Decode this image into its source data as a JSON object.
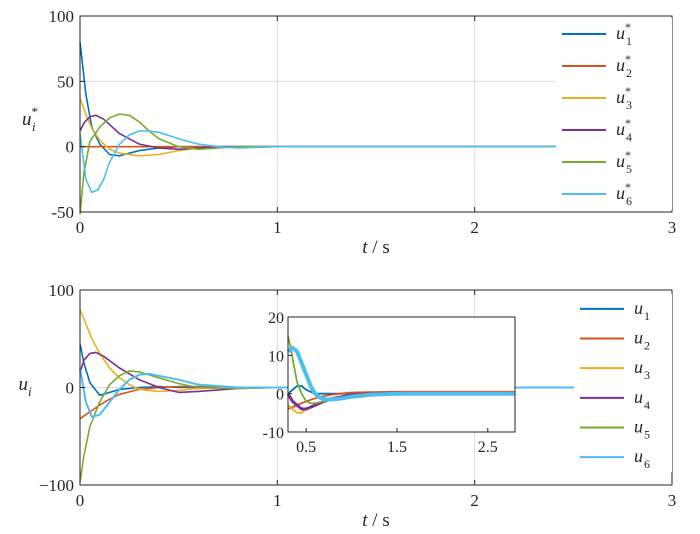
{
  "colors": {
    "u1": "#0072BD",
    "u2": "#D95319",
    "u3": "#EDB120",
    "u4": "#7E2F8E",
    "u5": "#77AC30",
    "u6": "#4DBEEE",
    "axis": "#262626",
    "grid": "#dddddd"
  },
  "chart_data": [
    {
      "type": "line",
      "xlabel": {
        "var": "t",
        "unit": " / s"
      },
      "ylabel": {
        "base": "u",
        "sub": "i",
        "sup": "*"
      },
      "xlim": [
        0,
        3
      ],
      "ylim": [
        -50,
        100
      ],
      "xticks": [
        "0",
        "1",
        "2",
        "3"
      ],
      "yticks": [
        "100",
        "50",
        "0",
        "-50"
      ],
      "grid": true,
      "legend_position": "top-right",
      "series": [
        {
          "name": "u1*",
          "label_base": "u",
          "label_sub": "1",
          "label_sup": "*",
          "color_key": "u1",
          "x": [
            0,
            0.03,
            0.06,
            0.1,
            0.15,
            0.2,
            0.25,
            0.3,
            0.4,
            0.5,
            0.6,
            0.8,
            3
          ],
          "y": [
            80,
            40,
            15,
            2,
            -6,
            -7,
            -5,
            -3,
            -1,
            0,
            0,
            0,
            0
          ]
        },
        {
          "name": "u2*",
          "label_base": "u",
          "label_sub": "2",
          "label_sup": "*",
          "color_key": "u2",
          "x": [
            0,
            0.1,
            0.3,
            0.6,
            1.0,
            3
          ],
          "y": [
            0,
            0,
            0,
            0,
            0,
            0
          ]
        },
        {
          "name": "u3*",
          "label_base": "u",
          "label_sub": "3",
          "label_sup": "*",
          "color_key": "u3",
          "x": [
            0,
            0.03,
            0.06,
            0.1,
            0.15,
            0.2,
            0.3,
            0.4,
            0.5,
            0.6,
            0.7,
            0.8,
            3
          ],
          "y": [
            37,
            25,
            14,
            5,
            -2,
            -5,
            -7,
            -6,
            -3,
            -1,
            0,
            0,
            0
          ]
        },
        {
          "name": "u4*",
          "label_base": "u",
          "label_sub": "4",
          "label_sup": "*",
          "color_key": "u4",
          "x": [
            0,
            0.02,
            0.05,
            0.08,
            0.12,
            0.2,
            0.3,
            0.4,
            0.5,
            0.6,
            0.7,
            3
          ],
          "y": [
            12,
            18,
            23,
            24,
            21,
            10,
            2,
            -1,
            -2,
            -1,
            0,
            0
          ]
        },
        {
          "name": "u5*",
          "label_base": "u",
          "label_sub": "5",
          "label_sup": "*",
          "color_key": "u5",
          "x": [
            0,
            0.02,
            0.05,
            0.1,
            0.15,
            0.2,
            0.25,
            0.3,
            0.35,
            0.4,
            0.5,
            0.6,
            0.7,
            0.8,
            3
          ],
          "y": [
            -52,
            -20,
            4,
            15,
            22,
            25,
            24,
            19,
            12,
            6,
            0,
            -2,
            -1,
            0,
            0
          ]
        },
        {
          "name": "u6*",
          "label_base": "u",
          "label_sub": "6",
          "label_sup": "*",
          "color_key": "u6",
          "x": [
            0,
            0.03,
            0.06,
            0.09,
            0.12,
            0.15,
            0.2,
            0.25,
            0.3,
            0.35,
            0.4,
            0.5,
            0.6,
            0.7,
            0.8,
            1.0,
            3
          ],
          "y": [
            10,
            -25,
            -35,
            -33,
            -25,
            -12,
            2,
            9,
            12,
            12,
            11,
            6,
            2,
            0,
            -1,
            0,
            0
          ]
        }
      ]
    },
    {
      "type": "line",
      "xlabel": {
        "var": "t",
        "unit": " / s"
      },
      "ylabel": {
        "base": "u",
        "sub": "i",
        "sup": ""
      },
      "xlim": [
        0,
        3
      ],
      "ylim": [
        -100,
        100
      ],
      "xticks": [
        "0",
        "1",
        "2",
        "3"
      ],
      "yticks": [
        "100",
        "0",
        "−100"
      ],
      "grid": true,
      "legend_position": "top-right",
      "series": [
        {
          "name": "u1",
          "label_base": "u",
          "label_sub": "1",
          "label_sup": "",
          "color_key": "u1",
          "x": [
            0,
            0.02,
            0.05,
            0.1,
            0.15,
            0.2,
            0.3,
            0.4,
            0.5,
            0.6,
            0.8,
            1.0,
            3
          ],
          "y": [
            45,
            25,
            5,
            -8,
            -5,
            -2,
            0,
            1,
            0,
            0,
            0,
            0,
            0
          ]
        },
        {
          "name": "u2",
          "label_base": "u",
          "label_sub": "2",
          "label_sup": "",
          "color_key": "u2",
          "x": [
            0,
            0.05,
            0.1,
            0.15,
            0.2,
            0.3,
            0.4,
            0.5,
            0.6,
            0.8,
            1.0,
            3
          ],
          "y": [
            -32,
            -25,
            -18,
            -12,
            -7,
            -2,
            0,
            1,
            1,
            0,
            0,
            0
          ]
        },
        {
          "name": "u3",
          "label_base": "u",
          "label_sub": "3",
          "label_sup": "",
          "color_key": "u3",
          "x": [
            0,
            0.03,
            0.06,
            0.1,
            0.15,
            0.2,
            0.25,
            0.3,
            0.4,
            0.5,
            0.6,
            0.8,
            1.0,
            3
          ],
          "y": [
            80,
            65,
            50,
            35,
            20,
            10,
            3,
            -2,
            -4,
            -3,
            -1,
            0,
            0,
            0
          ]
        },
        {
          "name": "u4",
          "label_base": "u",
          "label_sub": "4",
          "label_sup": "",
          "color_key": "u4",
          "x": [
            0,
            0.02,
            0.05,
            0.08,
            0.12,
            0.2,
            0.3,
            0.4,
            0.5,
            0.6,
            0.8,
            1.0,
            3
          ],
          "y": [
            15,
            28,
            35,
            36,
            32,
            20,
            8,
            0,
            -5,
            -4,
            -1,
            0,
            0
          ]
        },
        {
          "name": "u5",
          "label_base": "u",
          "label_sub": "5",
          "label_sup": "",
          "color_key": "u5",
          "x": [
            0,
            0.02,
            0.05,
            0.1,
            0.15,
            0.2,
            0.25,
            0.3,
            0.4,
            0.5,
            0.6,
            0.8,
            1.0,
            3
          ],
          "y": [
            -97,
            -70,
            -40,
            -15,
            3,
            12,
            17,
            16,
            10,
            4,
            0,
            -1,
            0,
            0
          ]
        },
        {
          "name": "u6",
          "label_base": "u",
          "label_sub": "6",
          "label_sup": "",
          "color_key": "u6",
          "x": [
            0,
            0.03,
            0.06,
            0.1,
            0.15,
            0.2,
            0.25,
            0.3,
            0.35,
            0.4,
            0.5,
            0.6,
            0.8,
            1.0,
            3
          ],
          "y": [
            20,
            -15,
            -30,
            -28,
            -15,
            -2,
            8,
            13,
            14,
            12,
            8,
            3,
            0,
            0,
            0
          ]
        }
      ]
    },
    {
      "type": "line",
      "role": "inset",
      "xlim": [
        0.3,
        2.8
      ],
      "ylim": [
        -10,
        20
      ],
      "xticks": [
        "0.5",
        "1.5",
        "2.5"
      ],
      "xtick_values": [
        0.5,
        1.5,
        2.5
      ],
      "yticks": [
        "20",
        "10",
        "0",
        "-10"
      ],
      "ytick_values": [
        20,
        10,
        0,
        -10
      ],
      "grid": false,
      "series": [
        {
          "name": "u1",
          "color_key": "u1",
          "x": [
            0.3,
            0.35,
            0.4,
            0.45,
            0.5,
            0.55,
            0.6,
            0.7,
            0.8,
            1.0,
            1.5,
            2.8
          ],
          "y": [
            0,
            1,
            2,
            2,
            1,
            0.5,
            0,
            0,
            0,
            0,
            0,
            0
          ]
        },
        {
          "name": "u2",
          "color_key": "u2",
          "x": [
            0.3,
            0.4,
            0.5,
            0.6,
            0.7,
            0.8,
            1.0,
            1.2,
            1.5,
            2.8
          ],
          "y": [
            -4,
            -3,
            -2,
            -1.2,
            -0.6,
            -0.2,
            0.3,
            0.4,
            0.5,
            0.5
          ]
        },
        {
          "name": "u3",
          "color_key": "u3",
          "x": [
            0.3,
            0.35,
            0.4,
            0.45,
            0.5,
            0.55,
            0.6,
            0.7,
            0.8,
            0.9,
            1.0,
            1.2,
            1.5,
            2.8
          ],
          "y": [
            -3,
            -4,
            -5,
            -5,
            -4,
            -3.5,
            -3,
            -2,
            -1.5,
            -1,
            -0.5,
            0,
            0,
            0
          ]
        },
        {
          "name": "u4",
          "color_key": "u4",
          "x": [
            0.3,
            0.35,
            0.4,
            0.45,
            0.5,
            0.55,
            0.6,
            0.7,
            0.8,
            0.9,
            1.0,
            1.2,
            1.5,
            2.8
          ],
          "y": [
            0,
            -2,
            -3,
            -4,
            -4,
            -3.5,
            -3,
            -2,
            -1.2,
            -0.8,
            -0.4,
            0,
            0,
            0
          ]
        },
        {
          "name": "u5",
          "color_key": "u5",
          "x": [
            0.3,
            0.33,
            0.36,
            0.4,
            0.45,
            0.5,
            0.55,
            0.6,
            0.7,
            0.8,
            1.0,
            1.2,
            1.5,
            2.8
          ],
          "y": [
            15,
            12,
            8,
            3,
            0,
            -2,
            -2.5,
            -2.5,
            -2,
            -1.5,
            -0.5,
            0,
            0,
            0
          ]
        },
        {
          "name": "u6",
          "color_key": "u6",
          "x": [
            0.3,
            0.35,
            0.4,
            0.45,
            0.5,
            0.55,
            0.6,
            0.65,
            0.7,
            0.8,
            0.9,
            1.0,
            1.2,
            1.5,
            2.8
          ],
          "y": [
            11,
            12,
            11,
            8,
            5,
            2,
            0,
            -1,
            -1.5,
            -1.5,
            -1.2,
            -0.8,
            -0.3,
            0,
            0
          ]
        }
      ]
    }
  ]
}
